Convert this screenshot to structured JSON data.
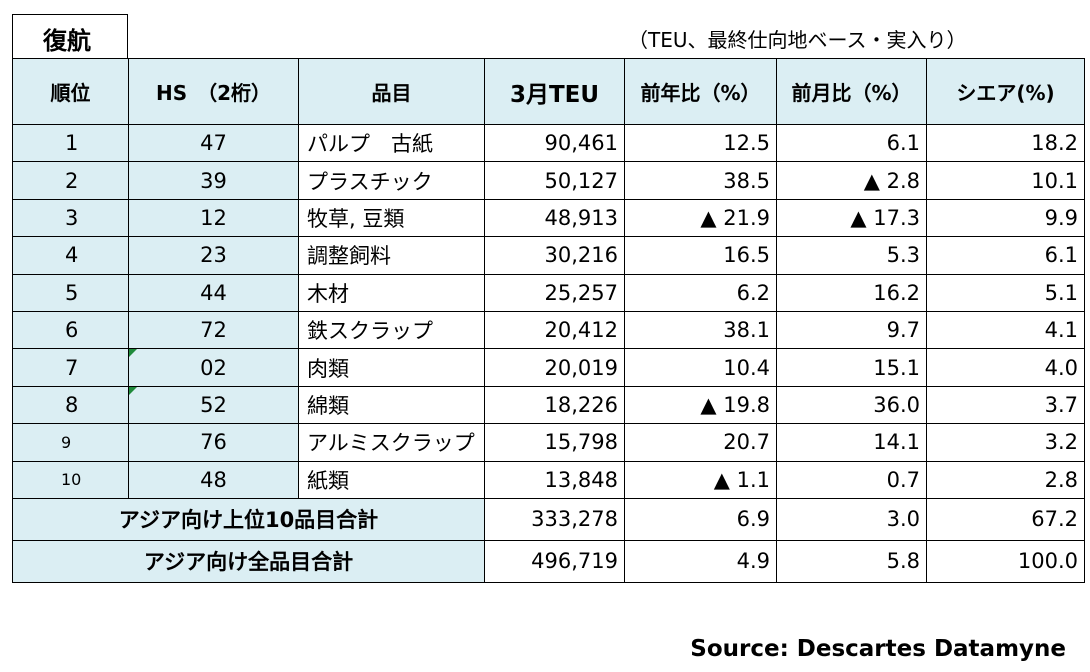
{
  "title": "復航",
  "note": "（TEU、最終仕向地ベース・実入り）",
  "headers": [
    "順位",
    "HS　（2桁）",
    "品目",
    "3月TEU",
    "前年比（%）",
    "前月比（%）",
    "シエア(%)"
  ],
  "rows": [
    {
      "rank": "1",
      "hs": "47",
      "item": "パルプ　古紙",
      "teu": "90,461",
      "yoy": "12.5",
      "mom": "6.1",
      "share": "18.2"
    },
    {
      "rank": "2",
      "hs": "39",
      "item": "プラスチック",
      "teu": "50,127",
      "yoy": "38.5",
      "mom": "▲ 2.8",
      "share": "10.1"
    },
    {
      "rank": "3",
      "hs": "12",
      "item": "牧草, 豆類",
      "teu": "48,913",
      "yoy": "▲ 21.9",
      "mom": "▲ 17.3",
      "share": "9.9"
    },
    {
      "rank": "4",
      "hs": "23",
      "item": "調整飼料",
      "teu": "30,216",
      "yoy": "16.5",
      "mom": "5.3",
      "share": "6.1"
    },
    {
      "rank": "5",
      "hs": "44",
      "item": "木材",
      "teu": "25,257",
      "yoy": "6.2",
      "mom": "16.2",
      "share": "5.1"
    },
    {
      "rank": "6",
      "hs": "72",
      "item": "鉄スクラップ",
      "teu": "20,412",
      "yoy": "38.1",
      "mom": "9.7",
      "share": "4.1"
    },
    {
      "rank": "7",
      "hs": "02",
      "item": "肉類",
      "teu": "20,019",
      "yoy": "10.4",
      "mom": "15.1",
      "share": "4.0"
    },
    {
      "rank": "8",
      "hs": "52",
      "item": "綿類",
      "teu": "18,226",
      "yoy": "▲ 19.8",
      "mom": "36.0",
      "share": "3.7"
    },
    {
      "rank": "9",
      "hs": "76",
      "item": "アルミスクラップ",
      "teu": "15,798",
      "yoy": "20.7",
      "mom": "14.1",
      "share": "3.2"
    },
    {
      "rank": "10",
      "hs": "48",
      "item": "紙類",
      "teu": "13,848",
      "yoy": "▲ 1.1",
      "mom": "0.7",
      "share": "2.8"
    }
  ],
  "totals": [
    {
      "label": "アジア向け上位10品目合計",
      "teu": "333,278",
      "yoy": "6.9",
      "mom": "3.0",
      "share": "67.2"
    },
    {
      "label": "アジア向け全品目合計",
      "teu": "496,719",
      "yoy": "4.9",
      "mom": "5.8",
      "share": "100.0"
    }
  ],
  "source": "Source: Descartes Datamyne",
  "colors": {
    "header_bg": "#dbeef3",
    "marker": "#1f8a3a"
  }
}
